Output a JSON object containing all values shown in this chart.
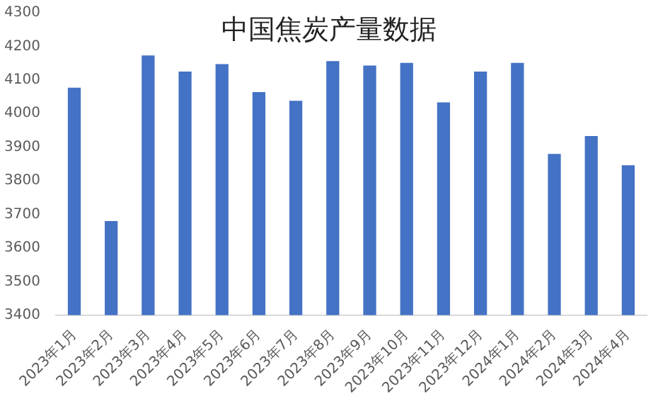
{
  "chart_data": {
    "type": "bar",
    "title": "中国焦炭产量数据",
    "categories": [
      "2023年1月",
      "2023年2月",
      "2023年3月",
      "2023年4月",
      "2023年5月",
      "2023年6月",
      "2023年7月",
      "2023年8月",
      "2023年9月",
      "2023年10月",
      "2023年11月",
      "2023年12月",
      "2024年1月",
      "2024年2月",
      "2024年3月",
      "2024年4月"
    ],
    "values": [
      4077,
      3680,
      4173,
      4125,
      4147,
      4064,
      4038,
      4156,
      4143,
      4151,
      4033,
      4125,
      4151,
      3880,
      3933,
      3846
    ],
    "color": "#4472c4",
    "ylim": [
      3400,
      4300
    ],
    "yticks": [
      3400,
      3500,
      3600,
      3700,
      3800,
      3900,
      4000,
      4100,
      4200,
      4300
    ],
    "grid": false,
    "legend": false
  }
}
